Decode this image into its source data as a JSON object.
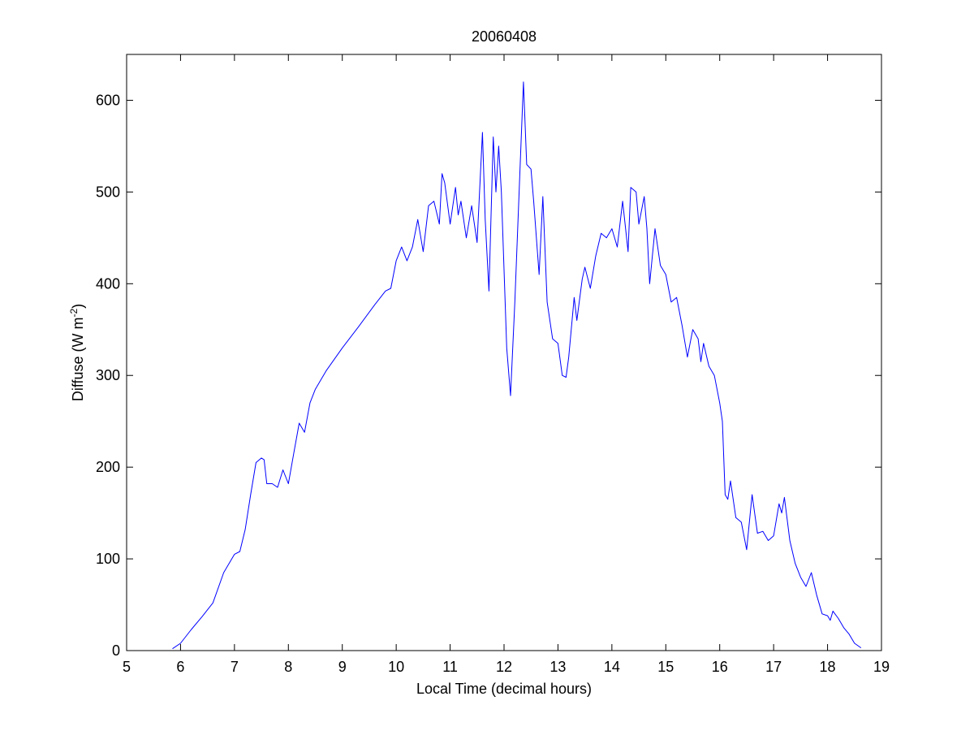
{
  "chart_data": {
    "type": "line",
    "title": "20060408",
    "xlabel": "Local Time (decimal hours)",
    "ylabel": {
      "text": "Diffuse (W m",
      "superscript": "-2",
      "suffix": ")"
    },
    "xlim": [
      5,
      19
    ],
    "ylim": [
      0,
      650
    ],
    "xticks": [
      5,
      6,
      7,
      8,
      9,
      10,
      11,
      12,
      13,
      14,
      15,
      16,
      17,
      18,
      19
    ],
    "yticks": [
      0,
      100,
      200,
      300,
      400,
      500,
      600
    ],
    "grid": false,
    "line_color": "#0000ff",
    "series": [
      {
        "x": [
          5.85,
          6.0,
          6.2,
          6.4,
          6.6,
          6.8,
          7.0,
          7.1,
          7.2,
          7.3,
          7.4,
          7.5,
          7.55,
          7.6,
          7.7,
          7.8,
          7.9,
          8.0,
          8.1,
          8.2,
          8.3,
          8.4,
          8.5,
          8.7,
          9.0,
          9.3,
          9.6,
          9.8,
          9.9,
          10.0,
          10.1,
          10.2,
          10.3,
          10.4,
          10.5,
          10.6,
          10.7,
          10.8,
          10.85,
          10.9,
          11.0,
          11.1,
          11.15,
          11.2,
          11.3,
          11.4,
          11.5,
          11.6,
          11.65,
          11.72,
          11.8,
          11.85,
          11.9,
          11.95,
          12.05,
          12.12,
          12.2,
          12.3,
          12.36,
          12.42,
          12.5,
          12.55,
          12.65,
          12.72,
          12.8,
          12.9,
          13.0,
          13.08,
          13.15,
          13.2,
          13.3,
          13.35,
          13.45,
          13.5,
          13.6,
          13.7,
          13.8,
          13.9,
          14.0,
          14.1,
          14.2,
          14.3,
          14.35,
          14.45,
          14.5,
          14.6,
          14.65,
          14.7,
          14.8,
          14.9,
          15.0,
          15.1,
          15.2,
          15.3,
          15.4,
          15.5,
          15.6,
          15.65,
          15.7,
          15.8,
          15.9,
          16.0,
          16.05,
          16.1,
          16.15,
          16.2,
          16.3,
          16.4,
          16.5,
          16.6,
          16.7,
          16.8,
          16.9,
          17.0,
          17.1,
          17.15,
          17.2,
          17.3,
          17.4,
          17.5,
          17.6,
          17.7,
          17.8,
          17.9,
          18.0,
          18.05,
          18.1,
          18.2,
          18.3,
          18.4,
          18.5,
          18.62
        ],
        "y": [
          2,
          8,
          23,
          37,
          52,
          85,
          105,
          108,
          132,
          170,
          205,
          210,
          208,
          182,
          182,
          178,
          197,
          182,
          215,
          248,
          238,
          270,
          285,
          305,
          330,
          353,
          377,
          392,
          395,
          425,
          440,
          425,
          440,
          470,
          435,
          485,
          490,
          465,
          520,
          510,
          465,
          505,
          475,
          490,
          450,
          485,
          445,
          565,
          470,
          392,
          560,
          500,
          550,
          500,
          330,
          278,
          380,
          530,
          620,
          530,
          525,
          490,
          410,
          495,
          380,
          340,
          335,
          300,
          298,
          320,
          385,
          360,
          405,
          418,
          395,
          430,
          455,
          450,
          460,
          440,
          490,
          435,
          505,
          500,
          465,
          495,
          460,
          400,
          460,
          420,
          410,
          380,
          385,
          355,
          320,
          350,
          340,
          315,
          335,
          310,
          300,
          270,
          250,
          170,
          165,
          185,
          145,
          140,
          110,
          170,
          128,
          130,
          120,
          125,
          160,
          150,
          167,
          120,
          95,
          80,
          70,
          85,
          60,
          40,
          38,
          33,
          43,
          35,
          25,
          18,
          8,
          3
        ]
      }
    ]
  }
}
